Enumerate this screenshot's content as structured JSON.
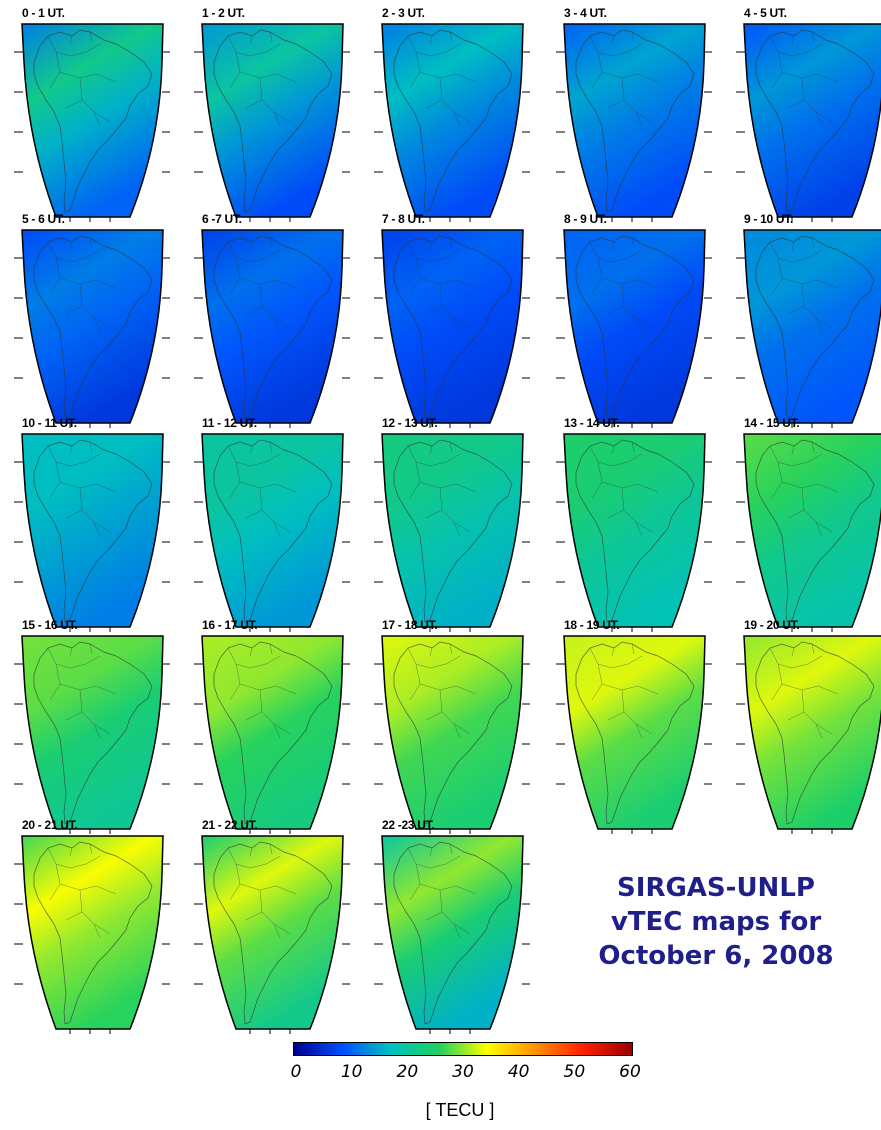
{
  "title_lines": [
    "SIRGAS-UNLP",
    "vTEC maps for",
    "October 6, 2008"
  ],
  "colors": {
    "title": "#1f1f8c",
    "scale": [
      "#00008f",
      "#0050ff",
      "#00c0c0",
      "#20d060",
      "#ffff00",
      "#ff9000",
      "#ff2000",
      "#9a0000"
    ]
  },
  "colorbar": {
    "ticks": [
      "0",
      "10",
      "20",
      "30",
      "40",
      "50",
      "60"
    ],
    "min": 0,
    "max": 60,
    "unit": "[ TECU ]"
  },
  "maps": [
    {
      "label": "0 - 1 UT.",
      "tec": [
        12,
        22,
        16,
        10
      ]
    },
    {
      "label": "1 - 2 UT.",
      "tec": [
        14,
        20,
        14,
        8
      ]
    },
    {
      "label": "2 - 3 UT.",
      "tec": [
        12,
        17,
        13,
        8
      ]
    },
    {
      "label": "3 - 4 UT.",
      "tec": [
        10,
        15,
        12,
        8
      ]
    },
    {
      "label": "4 - 5 UT.",
      "tec": [
        9,
        14,
        11,
        7
      ]
    },
    {
      "label": "5 - 6 UT.",
      "tec": [
        8,
        12,
        10,
        6
      ]
    },
    {
      "label": "6 -7 UT.",
      "tec": [
        7,
        11,
        9,
        6
      ]
    },
    {
      "label": "7 - 8 UT.",
      "tec": [
        7,
        10,
        8,
        6
      ]
    },
    {
      "label": "8 - 9 UT.",
      "tec": [
        10,
        11,
        8,
        6
      ]
    },
    {
      "label": "9 - 10 UT.",
      "tec": [
        13,
        14,
        11,
        9
      ]
    },
    {
      "label": "10 - 11 UT.",
      "tec": [
        17,
        17,
        15,
        12
      ]
    },
    {
      "label": "11 - 12 UT.",
      "tec": [
        20,
        20,
        17,
        14
      ]
    },
    {
      "label": "12 - 13 UT.",
      "tec": [
        23,
        22,
        19,
        16
      ]
    },
    {
      "label": "13 - 14 UT.",
      "tec": [
        25,
        24,
        21,
        18
      ]
    },
    {
      "label": "14 - 15 UT.",
      "tec": [
        28,
        26,
        22,
        19
      ]
    },
    {
      "label": "15 - 16 UT.",
      "tec": [
        29,
        28,
        24,
        21
      ]
    },
    {
      "label": "16 - 17 UT.",
      "tec": [
        31,
        30,
        26,
        23
      ]
    },
    {
      "label": "17 - 18 UT.",
      "tec": [
        33,
        31,
        27,
        24
      ]
    },
    {
      "label": "18 - 19 UT.",
      "tec": [
        32,
        33,
        28,
        24
      ]
    },
    {
      "label": "19 - 20 UT.",
      "tec": [
        30,
        33,
        29,
        25
      ]
    },
    {
      "label": "20 - 21 UT.",
      "tec": [
        27,
        34,
        30,
        26
      ]
    },
    {
      "label": "21 - 22 UT.",
      "tec": [
        24,
        33,
        28,
        22
      ]
    },
    {
      "label": "22 -23 UT.",
      "tec": [
        20,
        30,
        24,
        16
      ]
    }
  ]
}
